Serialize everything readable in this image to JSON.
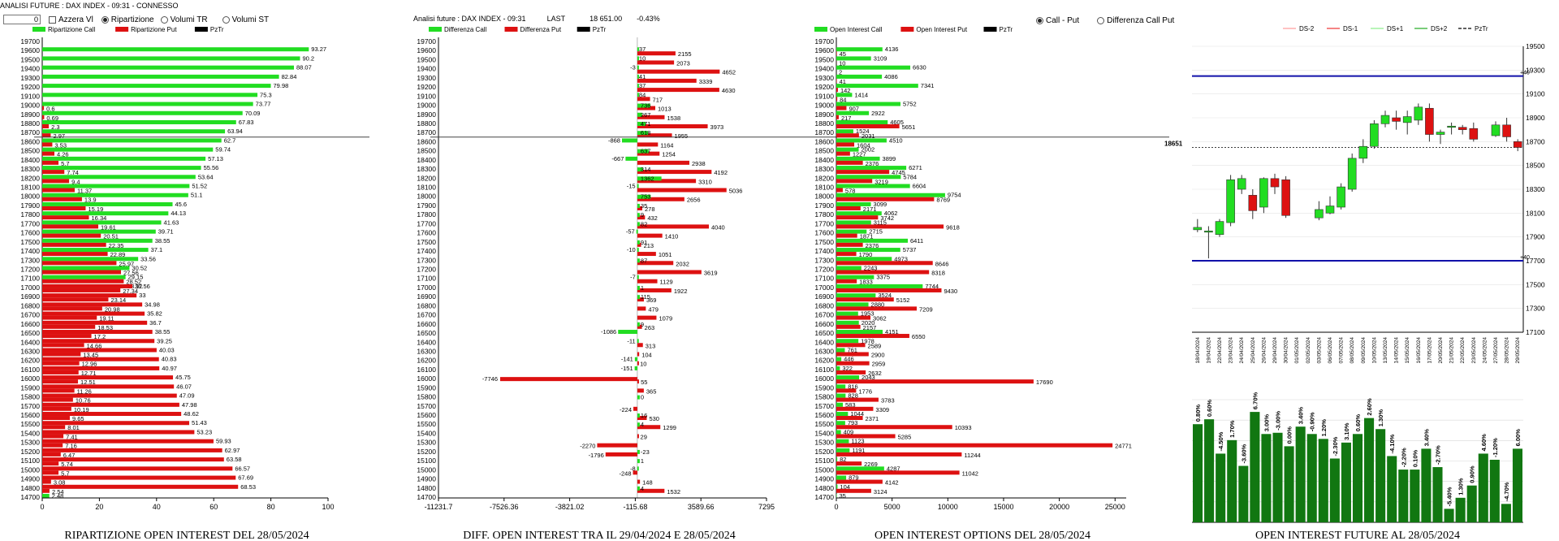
{
  "header": {
    "title_left": "ANALISI FUTURE : DAX INDEX - 09:31 - CONNESSO",
    "title_mid": "Analisi future : DAX INDEX - 09:31",
    "last_label": "LAST",
    "last_value": "18 651.00",
    "last_change": "-0.43%"
  },
  "controls": {
    "input_value": "0",
    "azzera_label": "Azzera Vl",
    "ripartizione_label": "Ripartizione",
    "volumi_tr_label": "Volumi TR",
    "volumi_st_label": "Volumi ST",
    "call_put_label": "Call - Put",
    "diff_call_put_label": "Differenza Call Put"
  },
  "colors": {
    "green": "#22dd22",
    "red": "#dd1111",
    "dark_green": "#117711",
    "blue": "#1111aa",
    "black": "#000000"
  },
  "strikes": [
    19700,
    19600,
    19500,
    19400,
    19300,
    19200,
    19100,
    19000,
    18900,
    18800,
    18700,
    18600,
    18500,
    18400,
    18300,
    18200,
    18100,
    18000,
    17900,
    17800,
    17700,
    17600,
    17500,
    17400,
    17300,
    17200,
    17100,
    17000,
    16900,
    16800,
    16700,
    16600,
    16500,
    16400,
    16300,
    16200,
    16100,
    16000,
    15900,
    15800,
    15700,
    15600,
    15500,
    15400,
    15300,
    15200,
    15100,
    15000,
    14900,
    14800,
    14700
  ],
  "chart_data": [
    {
      "id": "ripartizione",
      "type": "bar",
      "orientation": "horizontal",
      "title": "RIPARTIZIONE OPEN INTEREST DEL 28/05/2024",
      "legend": [
        "Ripartizione Call",
        "Ripartizione Put",
        "PzTr"
      ],
      "xlim": [
        0,
        100
      ],
      "xticks": [
        "0",
        "20",
        "40",
        "60",
        "80",
        "100"
      ],
      "series": [
        {
          "name": "Ripartizione Call",
          "values": [
            null,
            93.27,
            90.2,
            88.07,
            82.84,
            79.98,
            75.3,
            73.77,
            70.09,
            67.83,
            63.94,
            62.7,
            59.74,
            57.13,
            55.56,
            53.64,
            51.52,
            51.1,
            45.6,
            44.13,
            41.63,
            39.71,
            38.55,
            37.1,
            33.56,
            30.52,
            29.15,
            28.92,
            null,
            null,
            null,
            null,
            null,
            null,
            null,
            null,
            null,
            null,
            null,
            null,
            null,
            null,
            null,
            null,
            null,
            null,
            null,
            null,
            null,
            null,
            2.48
          ]
        },
        {
          "name": "Ripartizione Put",
          "values": [
            null,
            null,
            null,
            null,
            null,
            null,
            null,
            0.6,
            0.69,
            2.3,
            2.97,
            3.53,
            4.26,
            5.7,
            7.74,
            9.4,
            11.37,
            13.9,
            15.19,
            16.34,
            19.61,
            20.51,
            22.35,
            22.89,
            25.97,
            27.56,
            28.52,
            27.34,
            23.14,
            20.98,
            19.11,
            18.53,
            17.2,
            14.66,
            13.45,
            12.96,
            12.71,
            12.51,
            11.26,
            10.76,
            10.19,
            9.65,
            8.01,
            7.41,
            7.16,
            6.47,
            5.74,
            5.7,
            3.08,
            2.54,
            null
          ]
        }
      ],
      "right_labels": [
        null,
        null,
        null,
        null,
        null,
        null,
        null,
        null,
        null,
        null,
        null,
        null,
        null,
        null,
        null,
        null,
        null,
        null,
        null,
        null,
        null,
        null,
        null,
        null,
        null,
        null,
        null,
        31.56,
        33,
        34.98,
        35.82,
        36.7,
        38.55,
        39.25,
        40.03,
        40.83,
        40.97,
        45.75,
        46.07,
        47.09,
        47.98,
        48.62,
        51.43,
        53.23,
        59.93,
        62.97,
        63.58,
        66.57,
        67.69,
        68.53,
        null
      ]
    },
    {
      "id": "differenza",
      "type": "bar",
      "orientation": "horizontal",
      "title": "DIFF. OPEN INTEREST TRA IL 29/04/2024 E 28/05/2024",
      "legend": [
        "Differenza Call",
        "Differenza Put",
        "PzTr"
      ],
      "xlim": [
        -11231.7,
        7295
      ],
      "xticks": [
        "-11231.7",
        "-7526.36",
        "-3821.02",
        "-115.68",
        "3589.66",
        "7295"
      ],
      "series": [
        {
          "name": "Differenza Call",
          "values": [
            null,
            37,
            10,
            -3,
            41,
            37,
            84,
            null,
            null,
            null,
            null,
            -868,
            null,
            -667,
            null,
            null,
            -15,
            null,
            null,
            null,
            null,
            -57,
            null,
            -10,
            null,
            null,
            -7,
            null,
            null,
            null,
            null,
            null,
            -1086,
            -11,
            null,
            -141,
            -151,
            null,
            null,
            null,
            null,
            null,
            null,
            null,
            null,
            null,
            null,
            -8,
            null,
            null,
            null
          ]
        },
        {
          "name": "Differenza Put",
          "values": [
            null,
            2155,
            2073,
            4652,
            3339,
            4630,
            717,
            1013,
            1538,
            3973,
            1955,
            1164,
            1254,
            2938,
            4192,
            3310,
            5036,
            2656,
            278,
            432,
            4040,
            1410,
            213,
            1051,
            2032,
            3619,
            1129,
            1922,
            369,
            479,
            1079,
            263,
            null,
            313,
            104,
            10,
            null,
            55,
            365,
            null,
            -224,
            530,
            1299,
            29,
            -2270,
            -1796,
            null,
            -248,
            148,
            1532,
            null
          ]
        }
      ],
      "extra_labels": [
        null,
        null,
        null,
        null,
        null,
        null,
        null,
        736,
        267,
        471,
        618,
        null,
        637,
        null,
        314,
        1362,
        null,
        753,
        35,
        9,
        82,
        null,
        91,
        null,
        87,
        null,
        null,
        1,
        115,
        null,
        null,
        9,
        null,
        null,
        null,
        null,
        null,
        -7746,
        null,
        0,
        null,
        16,
        4,
        null,
        null,
        -23,
        1,
        null,
        null,
        4,
        null
      ]
    },
    {
      "id": "oi-options",
      "type": "bar",
      "orientation": "horizontal",
      "title": "OPEN INTEREST OPTIONS DEL 28/05/2024",
      "legend": [
        "Open Interest Call",
        "Open Interest Put",
        "PzTr"
      ],
      "xlim": [
        0,
        26000
      ],
      "xticks": [
        "0",
        "5000",
        "10000",
        "15000",
        "20000",
        "25000"
      ],
      "series": [
        {
          "name": "Open Interest Call",
          "values": [
            null,
            4136,
            3109,
            6630,
            4086,
            7341,
            1414,
            5752,
            2922,
            4605,
            1524,
            4510,
            2002,
            3899,
            6271,
            5784,
            6604,
            9754,
            3099,
            4062,
            3115,
            2715,
            6411,
            5737,
            4973,
            2243,
            3375,
            7744,
            3524,
            2880,
            1953,
            2020,
            4151,
            1978,
            761,
            446,
            322,
            2043,
            816,
            828,
            583,
            1044,
            793,
            409,
            1123,
            1191,
            82,
            4287,
            879,
            104,
            35
          ]
        },
        {
          "name": "Open Interest Put",
          "values": [
            null,
            45,
            10,
            2,
            41,
            142,
            84,
            907,
            217,
            5651,
            2031,
            1604,
            1227,
            2376,
            4745,
            3219,
            578,
            8769,
            2171,
            3742,
            9618,
            1871,
            2376,
            1790,
            8646,
            8318,
            1833,
            9430,
            5152,
            7209,
            3062,
            2157,
            6550,
            2589,
            2900,
            2959,
            2632,
            17690,
            1776,
            3783,
            3309,
            2371,
            10393,
            5285,
            24771,
            11244,
            2269,
            11042,
            4142,
            3124,
            null
          ]
        }
      ]
    },
    {
      "id": "oi-future",
      "type": "candlestick",
      "title": "OPEN INTEREST FUTURE AL 28/05/2024",
      "legend": [
        "DS-2",
        "DS-1",
        "DS+1",
        "DS+2",
        "PzTr"
      ],
      "ylim": [
        17100,
        19500
      ],
      "yticks": [
        "19500",
        "19300",
        "19100",
        "18900",
        "18700",
        "18500",
        "18300",
        "18100",
        "17900",
        "17700",
        "17500",
        "17300",
        "17100"
      ],
      "last_price_label": "18651",
      "annotations": [
        "+40",
        "+40"
      ],
      "dates": [
        "18/04/2024",
        "19/04/2024",
        "22/04/2024",
        "23/04/2024",
        "24/04/2024",
        "25/04/2024",
        "26/04/2024",
        "29/04/2024",
        "30/04/2024",
        "01/05/2024",
        "02/05/2024",
        "03/05/2024",
        "06/05/2024",
        "07/05/2024",
        "08/05/2024",
        "09/05/2024",
        "10/05/2024",
        "13/05/2024",
        "14/05/2024",
        "15/05/2024",
        "16/05/2024",
        "17/05/2024",
        "20/05/2024",
        "21/05/2024",
        "22/05/2024",
        "23/05/2024",
        "24/05/2024",
        "27/05/2024",
        "28/05/2024",
        "29/05/2024"
      ],
      "ohlc": [
        [
          17960,
          18050,
          17940,
          17980
        ],
        [
          17940,
          17990,
          17720,
          17950
        ],
        [
          17920,
          18050,
          17900,
          18030
        ],
        [
          18020,
          18420,
          17990,
          18380
        ],
        [
          18300,
          18420,
          18260,
          18390
        ],
        [
          18250,
          18300,
          18050,
          18120
        ],
        [
          18150,
          18400,
          18100,
          18390
        ],
        [
          18390,
          18430,
          18260,
          18320
        ],
        [
          18380,
          18410,
          18060,
          18080
        ],
        [
          null,
          null,
          null,
          null
        ],
        [
          null,
          null,
          null,
          null
        ],
        [
          18060,
          18200,
          18040,
          18130
        ],
        [
          18100,
          18240,
          18090,
          18160
        ],
        [
          18150,
          18350,
          18130,
          18320
        ],
        [
          18300,
          18600,
          18280,
          18560
        ],
        [
          18560,
          18720,
          18520,
          18660
        ],
        [
          18660,
          18880,
          18640,
          18850
        ],
        [
          18850,
          18960,
          18820,
          18920
        ],
        [
          18900,
          18960,
          18800,
          18870
        ],
        [
          18860,
          18960,
          18760,
          18910
        ],
        [
          18880,
          19020,
          18840,
          18990
        ],
        [
          18980,
          19020,
          18700,
          18760
        ],
        [
          18760,
          18800,
          18680,
          18780
        ],
        [
          18820,
          18860,
          18760,
          18830
        ],
        [
          18820,
          18840,
          18760,
          18800
        ],
        [
          18810,
          18860,
          18700,
          18720
        ],
        [
          null,
          null,
          null,
          null
        ],
        [
          18750,
          18870,
          18740,
          18840
        ],
        [
          18840,
          18900,
          18700,
          18740
        ],
        [
          18700,
          18720,
          18620,
          18651
        ]
      ],
      "bands": {
        "upper": 19250,
        "lower": 17700
      },
      "oi_change_labels": [
        "0.80%",
        "0.60%",
        "-4.50%",
        "1.70%",
        "-3.60%",
        "6.70%",
        "3.00%",
        "-3.00%",
        "0.00%",
        "3.40%",
        "-0.90%",
        "1.20%",
        "-2.30%",
        "3.10%",
        "0.60%",
        "2.60%",
        "1.30%",
        "-4.10%",
        "-2.20%",
        "0.10%",
        "3.40%",
        "-2.70%",
        "-5.40%",
        "1.30%",
        "0.90%",
        "4.60%",
        "-1.20%",
        "-4.70%",
        "6.00%"
      ],
      "oi_change_heights": [
        0.8,
        0.84,
        0.56,
        0.67,
        0.46,
        0.9,
        0.72,
        0.73,
        0.62,
        0.78,
        0.72,
        0.68,
        0.52,
        0.65,
        0.72,
        0.85,
        0.76,
        0.54,
        0.43,
        0.43,
        0.6,
        0.45,
        0.11,
        0.2,
        0.3,
        0.56,
        0.51,
        0.15,
        0.6
      ]
    }
  ]
}
